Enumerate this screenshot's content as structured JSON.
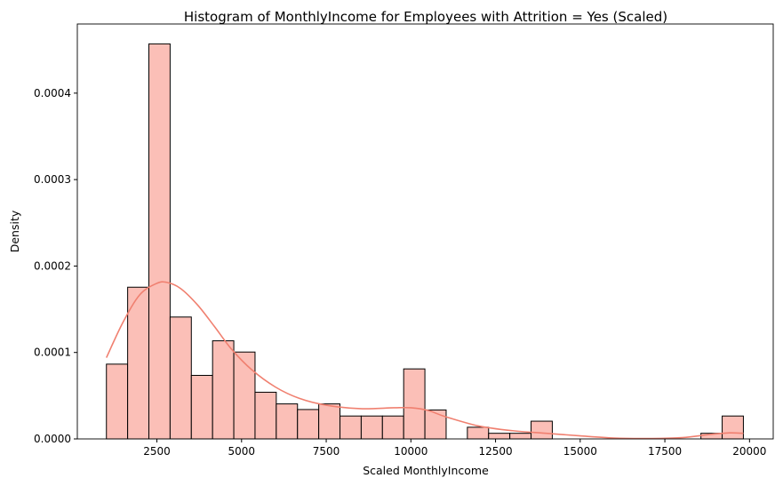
{
  "chart_data": {
    "type": "histogram",
    "title": "Histogram of MonthlyIncome for Employees with Attrition = Yes (Scaled)",
    "xlabel": "Scaled MonthlyIncome",
    "ylabel": "Density",
    "xlim": [
      150,
      20700
    ],
    "ylim": [
      0,
      0.00048
    ],
    "xticks": [
      2500,
      5000,
      7500,
      10000,
      12500,
      15000,
      17500,
      20000
    ],
    "xtick_labels": [
      "2500",
      "5000",
      "7500",
      "10000",
      "12500",
      "15000",
      "17500",
      "20000"
    ],
    "yticks": [
      0,
      0.0001,
      0.0002,
      0.0003,
      0.0004
    ],
    "ytick_labels": [
      "0.0000",
      "0.0001",
      "0.0002",
      "0.0003",
      "0.0004"
    ],
    "grid": false,
    "bins": {
      "edges": [
        1009,
        1636,
        2263,
        2890,
        3517,
        4144,
        4771,
        5398,
        6025,
        6652,
        7279,
        7906,
        8533,
        9160,
        9787,
        10414,
        11041,
        11668,
        12295,
        12922,
        13549,
        14176,
        14803,
        15430,
        16057,
        16684,
        17311,
        17938,
        18565,
        19192,
        19819
      ],
      "density": [
        8.65e-05,
        0.0001755,
        0.000457,
        0.000141,
        7.35e-05,
        0.0001135,
        0.0001005,
        5.4e-05,
        4.05e-05,
        3.4e-05,
        4.05e-05,
        2.65e-05,
        2.65e-05,
        2.65e-05,
        8.1e-05,
        3.35e-05,
        0,
        1.35e-05,
        6.5e-06,
        6.5e-06,
        2.05e-05,
        0,
        0,
        0,
        0,
        0,
        0,
        0,
        6.5e-06,
        2.65e-05
      ]
    },
    "kde": {
      "x": [
        1009,
        1500,
        2000,
        2500,
        2800,
        3200,
        3700,
        4200,
        4700,
        5300,
        6000,
        6700,
        7500,
        8500,
        9500,
        10000,
        10500,
        11000,
        12000,
        13000,
        14000,
        15000,
        16000,
        17000,
        18000,
        18800,
        19400,
        19819
      ],
      "y": [
        9.4e-05,
        0.000135,
        0.000167,
        0.00018,
        0.000181,
        0.000174,
        0.000155,
        0.00013,
        0.000104,
        8e-05,
        6e-05,
        4.7e-05,
        3.9e-05,
        3.5e-05,
        3.6e-05,
        3.6e-05,
        3.3e-05,
        2.6e-05,
        1.5e-05,
        9.5e-06,
        6.5e-06,
        3.5e-06,
        1e-06,
        5e-07,
        1.5e-06,
        5e-06,
        7e-06,
        6.5e-06
      ]
    },
    "colors": {
      "bar_fill": "#fbbfb7",
      "bar_edge": "#000000",
      "kde_line": "#f08070"
    }
  }
}
